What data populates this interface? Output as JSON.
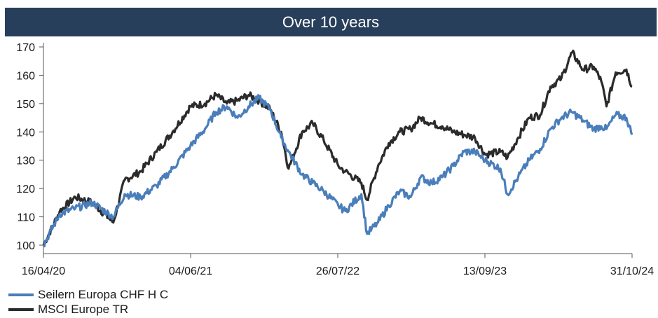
{
  "chart_data": {
    "type": "line",
    "title": "Over 10 years",
    "xlabel": "",
    "ylabel": "",
    "x_ticks": [
      "16/04/20",
      "04/06/21",
      "26/07/22",
      "13/09/23",
      "31/10/24"
    ],
    "ylim": [
      100,
      170
    ],
    "y_ticks": [
      100,
      110,
      120,
      130,
      140,
      150,
      160,
      170
    ],
    "grid": false,
    "legend_position": "bottom-left",
    "x": [
      "2020-04-16",
      "2020-06-01",
      "2020-07-15",
      "2020-09-01",
      "2020-10-30",
      "2020-12-01",
      "2021-01-15",
      "2021-03-01",
      "2021-04-15",
      "2021-06-04",
      "2021-07-15",
      "2021-08-15",
      "2021-09-15",
      "2021-10-15",
      "2021-11-15",
      "2021-12-15",
      "2022-01-15",
      "2022-02-15",
      "2022-03-08",
      "2022-04-15",
      "2022-05-15",
      "2022-06-15",
      "2022-07-26",
      "2022-08-15",
      "2022-09-29",
      "2022-10-15",
      "2022-11-15",
      "2022-12-15",
      "2023-01-15",
      "2023-02-15",
      "2023-03-15",
      "2023-04-15",
      "2023-05-15",
      "2023-06-15",
      "2023-07-15",
      "2023-08-15",
      "2023-09-13",
      "2023-10-26",
      "2023-11-15",
      "2023-12-15",
      "2024-01-15",
      "2024-02-15",
      "2024-03-15",
      "2024-04-15",
      "2024-05-15",
      "2024-06-15",
      "2024-07-15",
      "2024-08-05",
      "2024-08-20",
      "2024-09-15",
      "2024-10-15",
      "2024-10-31"
    ],
    "series": [
      {
        "name": "Seilern Europa CHF H C",
        "color": "#4a7ebb",
        "values": [
          100,
          111,
          113,
          115,
          110,
          118,
          117,
          121,
          127,
          135,
          141,
          147,
          149,
          145,
          149,
          152,
          148,
          138,
          133,
          125,
          122,
          119,
          114,
          112,
          118,
          104,
          108,
          114,
          119,
          117,
          124,
          122,
          124,
          128,
          133,
          133,
          130,
          127,
          118,
          124,
          130,
          134,
          141,
          145,
          147,
          144,
          141,
          142,
          141,
          146,
          145,
          139
        ]
      },
      {
        "name": "MSCI Europe TR",
        "color": "#2b2b2b",
        "values": [
          100,
          112,
          117,
          115,
          108,
          123,
          126,
          133,
          140,
          149,
          150,
          153,
          150,
          151,
          153,
          151,
          148,
          140,
          127,
          140,
          143,
          137,
          128,
          126,
          122,
          116,
          128,
          136,
          140,
          141,
          145,
          143,
          142,
          140,
          139,
          138,
          132,
          133,
          131,
          138,
          145,
          146,
          156,
          159,
          168,
          162,
          163,
          158,
          149,
          161,
          162,
          156
        ]
      }
    ]
  },
  "legend": {
    "items": [
      {
        "label": "Seilern Europa CHF H C",
        "color": "#4a7ebb"
      },
      {
        "label": "MSCI Europe TR",
        "color": "#2b2b2b"
      }
    ]
  }
}
